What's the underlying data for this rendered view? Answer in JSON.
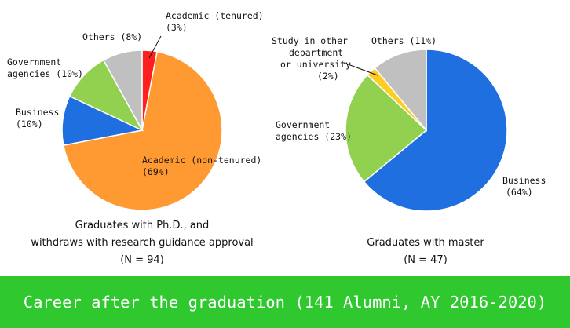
{
  "chart_data": [
    {
      "type": "pie",
      "title": "",
      "caption_lines": [
        "Graduates with Ph.D., and",
        "withdraws with research guidance approval",
        "(N = 94)"
      ],
      "start": "top, clockwise",
      "slices": [
        {
          "label": "Academic (tenured)",
          "value": 3,
          "display": "(3%)",
          "color": "#ff1f1f"
        },
        {
          "label": "Academic (non-tenured)",
          "value": 69,
          "display": "(69%)",
          "color": "#ff9a33"
        },
        {
          "label": "Business",
          "value": 10,
          "display": "(10%)",
          "color": "#1f6fe0"
        },
        {
          "label": "Government agencies",
          "value": 10,
          "display": "(10%)",
          "color": "#92d050"
        },
        {
          "label": "Others",
          "value": 8,
          "display": "(8%)",
          "color": "#c0c0c0"
        }
      ]
    },
    {
      "type": "pie",
      "title": "",
      "caption_lines": [
        "Graduates with master",
        "(N = 47)"
      ],
      "start": "top, clockwise",
      "slices": [
        {
          "label": "Business",
          "value": 64,
          "display": "(64%)",
          "color": "#1f6fe0"
        },
        {
          "label": "Government agencies",
          "value": 23,
          "display": "(23%)",
          "color": "#92d050"
        },
        {
          "label": "Study in other department or university",
          "value": 2,
          "display": "(2%)",
          "color": "#ffcc22"
        },
        {
          "label": "Others",
          "value": 11,
          "display": "(11%)",
          "color": "#c0c0c0"
        }
      ]
    }
  ],
  "labels": {
    "phd": {
      "tenured_1": "Academic (tenured)",
      "tenured_2": "(3%)",
      "others_1": "Others (8%)",
      "gov_1": "Government",
      "gov_2": "agencies (10%)",
      "business_1": "Business",
      "business_2": "(10%)",
      "nontenured_1": "Academic (non-tenured)",
      "nontenured_2": "(69%)"
    },
    "master": {
      "study_1": "Study in other",
      "study_2": "department",
      "study_3": "or university",
      "study_4": "(2%)",
      "others_1": "Others (11%)",
      "gov_1": "Government",
      "gov_2": "agencies (23%)",
      "business_1": "Business",
      "business_2": "(64%)"
    }
  },
  "banner": {
    "text": "Career after the graduation (141 Alumni, AY 2016-2020)",
    "color": "#2fc92f"
  }
}
